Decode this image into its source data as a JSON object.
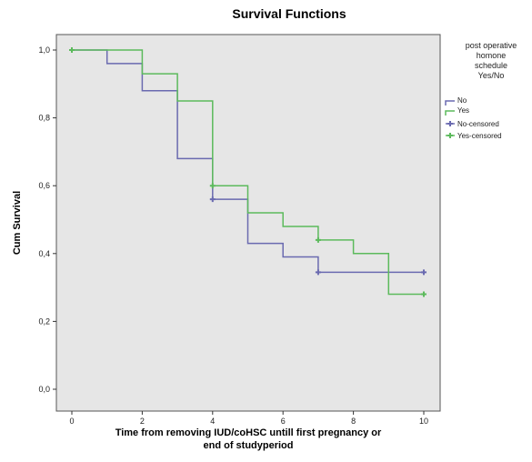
{
  "chart_data": {
    "type": "line",
    "step": true,
    "title": "Survival Functions",
    "xlabel_lines": [
      "Time from removing IUD/coHSC untill first pregnancy or",
      "end of studyperiod"
    ],
    "ylabel": "Cum Survival",
    "xlim": [
      0,
      10
    ],
    "ylim": [
      0,
      1
    ],
    "x_ticks": [
      0,
      2,
      4,
      6,
      8,
      10
    ],
    "x_tick_labels": [
      "0",
      "2",
      "4",
      "6",
      "8",
      "10"
    ],
    "y_ticks": [
      0,
      0.2,
      0.4,
      0.6,
      0.8,
      1.0
    ],
    "y_tick_labels": [
      "0,0",
      "0,2",
      "0,4",
      "0,6",
      "0,8",
      "1,0"
    ],
    "grid": false,
    "plot_background": "#e6e6e6",
    "legend": {
      "position": "right",
      "title_lines": [
        "post operative",
        "homone",
        "schedule",
        "Yes/No"
      ],
      "entries": [
        "No",
        "Yes",
        "No-censored",
        "Yes-censored"
      ]
    },
    "series": [
      {
        "name": "No",
        "color": "#6a6ab0",
        "x": [
          0,
          1,
          2,
          3,
          4,
          5,
          6,
          7,
          10
        ],
        "y": [
          1.0,
          0.96,
          0.88,
          0.68,
          0.56,
          0.43,
          0.39,
          0.345,
          0.345
        ],
        "censored": [
          [
            0,
            1.0
          ],
          [
            4,
            0.56
          ],
          [
            7,
            0.345
          ],
          [
            10,
            0.345
          ]
        ]
      },
      {
        "name": "Yes",
        "color": "#5cba5c",
        "x": [
          0,
          2,
          3,
          4,
          5,
          6,
          7,
          8,
          9,
          10
        ],
        "y": [
          1.0,
          0.93,
          0.85,
          0.6,
          0.52,
          0.48,
          0.44,
          0.4,
          0.28,
          0.28
        ],
        "censored": [
          [
            0,
            1.0
          ],
          [
            4,
            0.6
          ],
          [
            7,
            0.44
          ],
          [
            10,
            0.28
          ]
        ]
      }
    ]
  }
}
